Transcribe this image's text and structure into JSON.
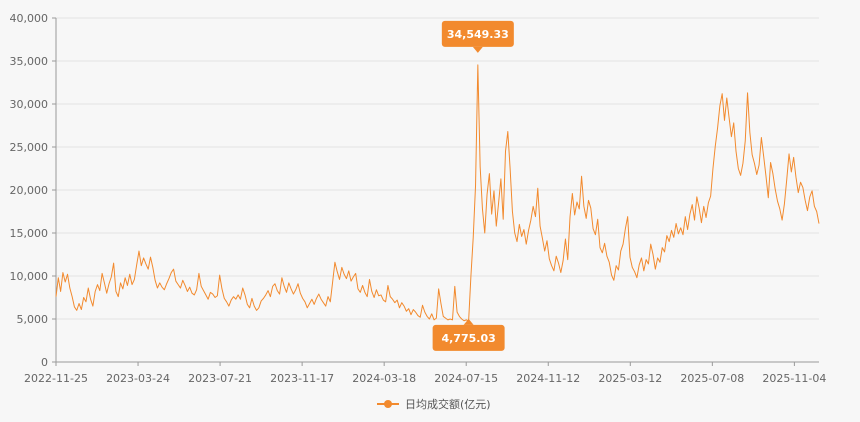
{
  "chart_data": {
    "type": "line",
    "title": "",
    "xlabel": "",
    "ylabel": "",
    "ylim": [
      0,
      40000
    ],
    "yticks": [
      "0",
      "5,000",
      "10,000",
      "15,000",
      "20,000",
      "25,000",
      "30,000",
      "35,000",
      "40,000"
    ],
    "xticks": [
      "2022-11-25",
      "2023-03-24",
      "2023-07-21",
      "2023-11-17",
      "2024-03-18",
      "2024-07-15",
      "2024-11-12",
      "2025-03-12",
      "2025-07-08",
      "2025-11-04"
    ],
    "grid": true,
    "legend_position": "bottom-center",
    "series": [
      {
        "name": "日均成交额(亿元)",
        "color": "#f28a2e",
        "values": [
          7600,
          9800,
          8200,
          10400,
          9300,
          10200,
          8600,
          7600,
          6400,
          6000,
          6800,
          6100,
          7500,
          7000,
          8600,
          7300,
          6500,
          8200,
          9000,
          8300,
          10300,
          9200,
          8000,
          9100,
          9900,
          11500,
          8200,
          7600,
          9200,
          8500,
          9800,
          8900,
          10200,
          9000,
          9600,
          11300,
          12900,
          11200,
          12100,
          11400,
          10800,
          12200,
          11000,
          9500,
          8600,
          9200,
          8700,
          8400,
          9100,
          9700,
          10400,
          10800,
          9400,
          9000,
          8600,
          9500,
          8900,
          8200,
          8700,
          8000,
          7800,
          8400,
          10300,
          8800,
          8300,
          7800,
          7300,
          8100,
          7900,
          7500,
          7700,
          10100,
          8500,
          7400,
          7000,
          6500,
          7200,
          7600,
          7300,
          7800,
          7300,
          8600,
          7800,
          6700,
          6300,
          7400,
          6500,
          6000,
          6300,
          7100,
          7400,
          7800,
          8300,
          7600,
          8800,
          9100,
          8300,
          7900,
          9800,
          8800,
          8100,
          9200,
          8500,
          7900,
          8400,
          9100,
          8000,
          7400,
          7000,
          6300,
          6800,
          7300,
          6700,
          7400,
          7900,
          7300,
          6900,
          6500,
          7600,
          7000,
          9300,
          11600,
          10500,
          9600,
          11000,
          10200,
          9700,
          10600,
          9400,
          9900,
          10300,
          8500,
          8100,
          8900,
          8100,
          7600,
          9600,
          8200,
          7500,
          8400,
          7700,
          7800,
          7200,
          7000,
          8900,
          7600,
          7300,
          6900,
          7200,
          6300,
          6900,
          6500,
          5900,
          6200,
          5500,
          6100,
          5800,
          5400,
          5200,
          6600,
          5800,
          5300,
          5000,
          5600,
          4900,
          5100,
          8500,
          6800,
          5300,
          5100,
          4900,
          5000,
          4900,
          8800,
          5800,
          5300,
          5000,
          4800,
          4900,
          4775,
          10000,
          14500,
          20500,
          34549,
          22700,
          17800,
          15000,
          19500,
          21900,
          17200,
          19900,
          15800,
          18500,
          21300,
          16600,
          24500,
          26800,
          22500,
          17500,
          15000,
          14000,
          16000,
          14600,
          15400,
          13700,
          15300,
          16500,
          18100,
          16900,
          20200,
          15800,
          14400,
          12900,
          14100,
          12000,
          11200,
          10600,
          12300,
          11500,
          10400,
          11800,
          14300,
          11900,
          16900,
          19600,
          17100,
          18600,
          17800,
          21600,
          18100,
          16700,
          18800,
          17900,
          15500,
          14800,
          16600,
          13300,
          12700,
          13800,
          12300,
          11600,
          10100,
          9500,
          11200,
          10700,
          12900,
          13700,
          15500,
          16900,
          12200,
          11000,
          10500,
          9800,
          11300,
          12100,
          10600,
          11900,
          11400,
          13700,
          12500,
          10800,
          12100,
          11600,
          13300,
          12800,
          14700,
          14000,
          15300,
          14500,
          16100,
          14900,
          15600,
          14800,
          16900,
          15400,
          17200,
          18300,
          16500,
          19200,
          17900,
          16200,
          18100,
          16800,
          18500,
          19300,
          22500,
          25100,
          27200,
          29800,
          31200,
          28100,
          30700,
          28400,
          26200,
          27800,
          24500,
          22500,
          21700,
          23100,
          25700,
          31300,
          26700,
          24100,
          23100,
          21800,
          22900,
          26100,
          23900,
          21600,
          19100,
          23200,
          21900,
          20100,
          18700,
          17800,
          16500,
          18400,
          21200,
          24200,
          22100,
          23800,
          21500,
          19700,
          20900,
          20300,
          18800,
          17600,
          19200,
          19900,
          18100,
          17500,
          16100
        ]
      }
    ],
    "annotations": [
      {
        "label": "34,549.33",
        "value": 34549.33,
        "kind": "max"
      },
      {
        "label": "4,775.03",
        "value": 4775.03,
        "kind": "min"
      }
    ]
  }
}
